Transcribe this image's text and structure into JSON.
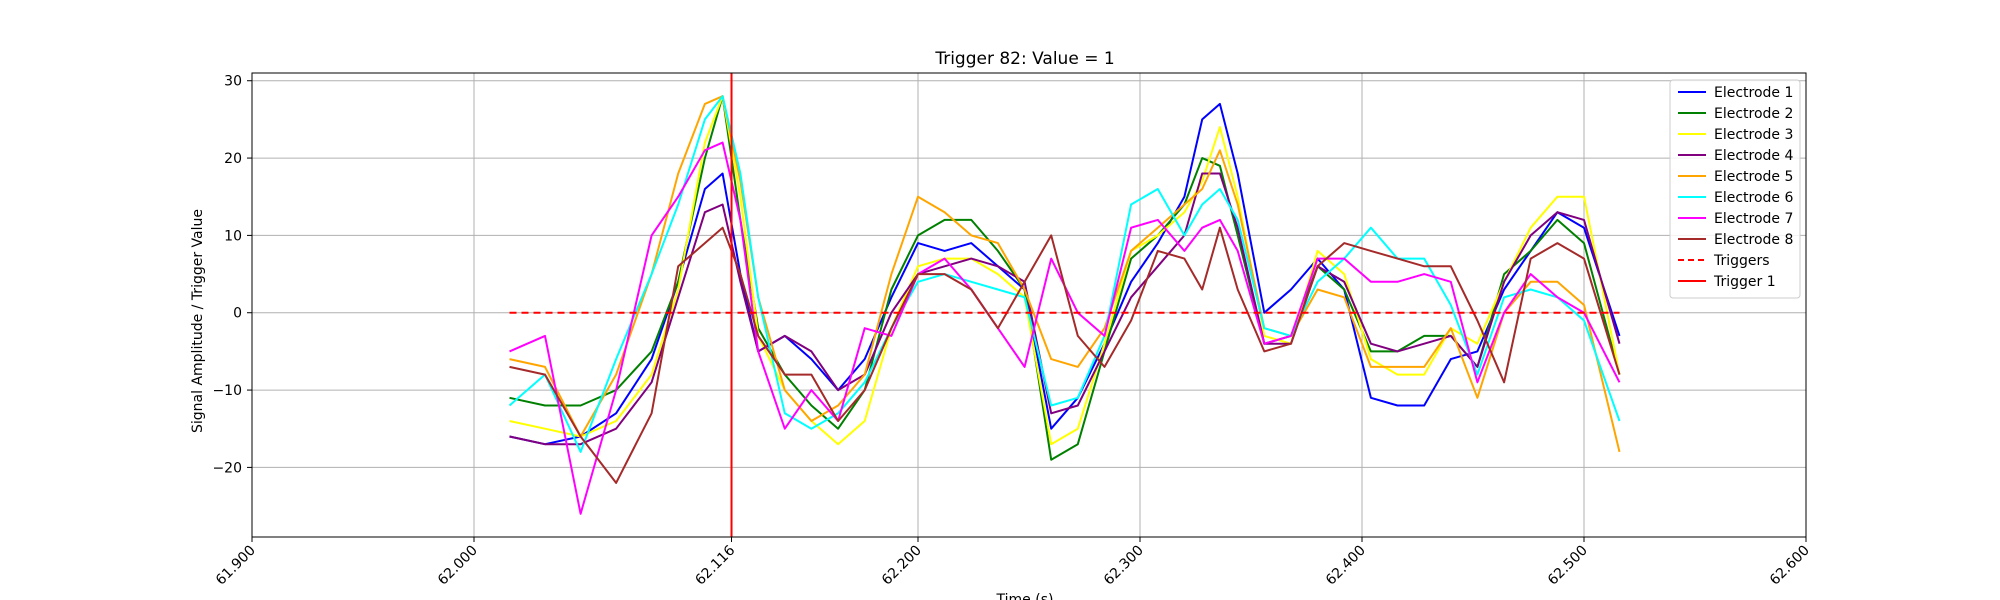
{
  "chart_data": {
    "type": "line",
    "title": "Trigger 82: Value = 1",
    "xlabel": "Time (s)",
    "ylabel": "Signal Amplitude / Trigger Value",
    "xlim": [
      61.9,
      62.6
    ],
    "ylim": [
      -29,
      31
    ],
    "xticks": [
      {
        "value": 61.9,
        "label": "61.900"
      },
      {
        "value": 62.0,
        "label": "62.000"
      },
      {
        "value": 62.116,
        "label": "62.116"
      },
      {
        "value": 62.2,
        "label": "62.200"
      },
      {
        "value": 62.3,
        "label": "62.300"
      },
      {
        "value": 62.4,
        "label": "62.400"
      },
      {
        "value": 62.5,
        "label": "62.500"
      },
      {
        "value": 62.6,
        "label": "62.600"
      }
    ],
    "yticks": [
      {
        "value": -20,
        "label": "−20"
      },
      {
        "value": -10,
        "label": "−10"
      },
      {
        "value": 0,
        "label": "0"
      },
      {
        "value": 10,
        "label": "10"
      },
      {
        "value": 20,
        "label": "20"
      },
      {
        "value": 30,
        "label": "30"
      }
    ],
    "grid": true,
    "legend_position": "top-right",
    "x": [
      62.016,
      62.032,
      62.048,
      62.064,
      62.08,
      62.092,
      62.104,
      62.112,
      62.12,
      62.128,
      62.14,
      62.152,
      62.164,
      62.176,
      62.188,
      62.2,
      62.212,
      62.224,
      62.236,
      62.248,
      62.26,
      62.272,
      62.284,
      62.296,
      62.308,
      62.32,
      62.328,
      62.336,
      62.344,
      62.356,
      62.368,
      62.38,
      62.392,
      62.404,
      62.416,
      62.428,
      62.44,
      62.452,
      62.464,
      62.476,
      62.488,
      62.5,
      62.516
    ],
    "series": [
      {
        "name": "Electrode 1",
        "color": "#0000ff",
        "dash": "",
        "values": [
          -16,
          -17,
          -16,
          -13,
          -6,
          4,
          16,
          18,
          5,
          -5,
          -3,
          -6,
          -10,
          -6,
          2,
          9,
          8,
          9,
          6,
          3,
          -15,
          -11,
          -4,
          4,
          9,
          15,
          25,
          27,
          18,
          0,
          3,
          7,
          3,
          -11,
          -12,
          -12,
          -6,
          -5,
          3,
          8,
          13,
          11,
          -3
        ]
      },
      {
        "name": "Electrode 2",
        "color": "#008000",
        "dash": "",
        "values": [
          -11,
          -12,
          -12,
          -10,
          -5,
          4,
          20,
          28,
          12,
          -2,
          -8,
          -12,
          -15,
          -10,
          3,
          10,
          12,
          12,
          8,
          3,
          -19,
          -17,
          -5,
          7,
          10,
          14,
          20,
          19,
          10,
          -4,
          -3,
          6,
          3,
          -5,
          -5,
          -3,
          -3,
          -7,
          5,
          8,
          12,
          9,
          -8
        ]
      },
      {
        "name": "Electrode 3",
        "color": "#ffff00",
        "dash": "",
        "values": [
          -14,
          -15,
          -16,
          -14,
          -8,
          3,
          22,
          28,
          15,
          -3,
          -10,
          -14,
          -17,
          -14,
          -2,
          6,
          7,
          7,
          5,
          2,
          -17,
          -15,
          -4,
          8,
          10,
          13,
          17,
          24,
          15,
          -3,
          -4,
          8,
          5,
          -6,
          -8,
          -8,
          -2,
          -4,
          4,
          11,
          15,
          15,
          -8
        ]
      },
      {
        "name": "Electrode 4",
        "color": "#800080",
        "dash": "",
        "values": [
          -16,
          -17,
          -17,
          -15,
          -9,
          2,
          13,
          14,
          4,
          -5,
          -3,
          -5,
          -10,
          -8,
          0,
          5,
          6,
          7,
          6,
          4,
          -13,
          -12,
          -5,
          2,
          6,
          10,
          18,
          18,
          11,
          -4,
          -4,
          6,
          4,
          -4,
          -5,
          -4,
          -3,
          -7,
          4,
          10,
          13,
          12,
          -4
        ]
      },
      {
        "name": "Electrode 5",
        "color": "#ffa500",
        "dash": "",
        "values": [
          -6,
          -7,
          -16,
          -8,
          5,
          18,
          27,
          28,
          17,
          2,
          -10,
          -14,
          -12,
          -8,
          5,
          15,
          13,
          10,
          9,
          3,
          -6,
          -7,
          -2,
          8,
          11,
          14,
          16,
          21,
          14,
          -2,
          -3,
          3,
          2,
          -7,
          -7,
          -7,
          -2,
          -11,
          0,
          4,
          4,
          1,
          -18
        ]
      },
      {
        "name": "Electrode 6",
        "color": "#00ffff",
        "dash": "",
        "values": [
          -12,
          -8,
          -18,
          -6,
          5,
          14,
          25,
          28,
          18,
          2,
          -13,
          -15,
          -13,
          -9,
          -2,
          4,
          5,
          4,
          3,
          2,
          -12,
          -11,
          -3,
          14,
          16,
          10,
          14,
          16,
          12,
          -2,
          -3,
          4,
          7,
          11,
          7,
          7,
          1,
          -8,
          2,
          3,
          2,
          -1,
          -14
        ]
      },
      {
        "name": "Electrode 7",
        "color": "#ff00ff",
        "dash": "",
        "values": [
          -5,
          -3,
          -26,
          -10,
          10,
          15,
          21,
          22,
          12,
          -5,
          -15,
          -10,
          -14,
          -2,
          -3,
          5,
          7,
          3,
          -2,
          -7,
          7,
          0,
          -3,
          11,
          12,
          8,
          11,
          12,
          8,
          -4,
          -3,
          7,
          7,
          4,
          4,
          5,
          4,
          -9,
          0,
          5,
          2,
          0,
          -9
        ]
      },
      {
        "name": "Electrode 8",
        "color": "#a52a2a",
        "dash": "",
        "values": [
          -7,
          -8,
          -16,
          -22,
          -13,
          6,
          9,
          11,
          5,
          -3,
          -8,
          -8,
          -14,
          -10,
          -2,
          5,
          5,
          3,
          -2,
          4,
          10,
          -3,
          -7,
          -1,
          8,
          7,
          3,
          11,
          3,
          -5,
          -4,
          6,
          9,
          8,
          7,
          6,
          6,
          -1,
          -9,
          7,
          9,
          7,
          -8
        ]
      },
      {
        "name": "Triggers",
        "color": "#ff0000",
        "dash": "7,5",
        "values": [
          0,
          0,
          0,
          0,
          0,
          0,
          0,
          0,
          0,
          0,
          0,
          0,
          0,
          0,
          0,
          0,
          0,
          0,
          0,
          0,
          0,
          0,
          0,
          0,
          0,
          0,
          0,
          0,
          0,
          0,
          0,
          0,
          0,
          0,
          0,
          0,
          0,
          0,
          0,
          0,
          0,
          0,
          0
        ]
      }
    ],
    "vlines": [
      {
        "name": "Trigger 1",
        "x": 62.116,
        "color": "#ff0000"
      }
    ]
  }
}
